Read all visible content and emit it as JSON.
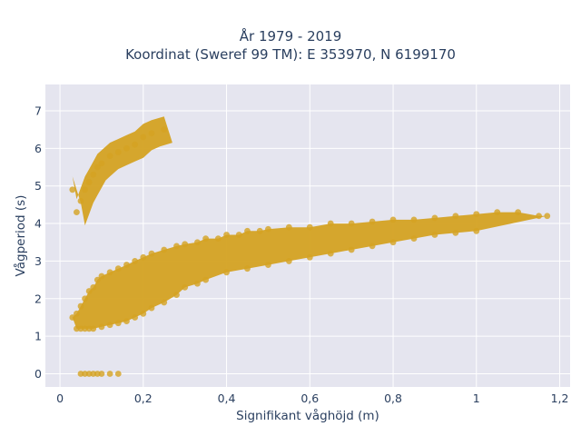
{
  "chart_data": {
    "type": "scatter",
    "title": "År 1979 - 2019",
    "subtitle": "Koordinat (Sweref 99 TM): E 353970, N 6199170",
    "xlabel": "Signifikant våghöjd (m)",
    "ylabel": "Vågperiod (s)",
    "xlim": [
      -0.035,
      1.225
    ],
    "ylim": [
      -0.35,
      7.7
    ],
    "xticks": [
      0,
      0.2,
      0.4,
      0.6,
      0.8,
      1,
      1.2
    ],
    "xtick_labels": [
      "0",
      "0,2",
      "0,4",
      "0,6",
      "0,8",
      "1",
      "1,2"
    ],
    "yticks": [
      0,
      1,
      2,
      3,
      4,
      5,
      6,
      7
    ],
    "ytick_labels": [
      "0",
      "1",
      "2",
      "3",
      "4",
      "5",
      "6",
      "7"
    ],
    "grid": true,
    "marker_color": "#d4a222",
    "plot_background": "#e5e5ef",
    "series": [
      {
        "x": [
          0.03,
          0.04,
          0.05,
          0.06,
          0.07,
          0.08,
          0.09,
          0.1,
          0.12,
          0.14,
          0.16,
          0.18,
          0.2,
          0.22,
          0.25,
          0.28,
          0.3,
          0.33,
          0.35,
          0.38,
          0.4,
          0.43,
          0.45,
          0.48,
          0.5,
          0.55,
          0.6,
          0.65,
          0.7,
          0.75,
          0.8,
          0.85,
          0.9,
          0.95,
          1.0,
          1.05,
          1.1,
          1.15,
          1.17
        ],
        "y": [
          1.5,
          1.6,
          1.8,
          2.0,
          2.2,
          2.3,
          2.5,
          2.6,
          2.7,
          2.8,
          2.9,
          3.0,
          3.1,
          3.2,
          3.3,
          3.4,
          3.45,
          3.5,
          3.6,
          3.6,
          3.7,
          3.7,
          3.8,
          3.8,
          3.85,
          3.9,
          3.9,
          4.0,
          4.0,
          4.05,
          4.1,
          4.1,
          4.15,
          4.2,
          4.25,
          4.3,
          4.3,
          4.2,
          4.2
        ]
      },
      {
        "x": [
          0.04,
          0.05,
          0.06,
          0.07,
          0.08,
          0.1,
          0.12,
          0.14,
          0.16,
          0.18,
          0.2,
          0.22,
          0.25,
          0.28,
          0.3,
          0.33,
          0.35,
          0.4,
          0.45,
          0.5,
          0.55,
          0.6,
          0.65,
          0.7,
          0.75,
          0.8,
          0.85,
          0.9,
          0.95,
          1.0
        ],
        "y": [
          1.2,
          1.2,
          1.2,
          1.2,
          1.2,
          1.25,
          1.3,
          1.35,
          1.4,
          1.5,
          1.6,
          1.75,
          1.9,
          2.1,
          2.3,
          2.4,
          2.5,
          2.7,
          2.8,
          2.9,
          3.0,
          3.1,
          3.2,
          3.3,
          3.4,
          3.5,
          3.6,
          3.7,
          3.75,
          3.8
        ]
      },
      {
        "x": [
          0.03,
          0.04,
          0.05,
          0.06,
          0.07,
          0.08,
          0.09,
          0.1,
          0.12,
          0.14,
          0.16,
          0.18,
          0.2,
          0.22,
          0.25
        ],
        "y": [
          4.9,
          4.3,
          4.6,
          4.9,
          5.1,
          5.3,
          5.5,
          5.6,
          5.8,
          5.9,
          6.0,
          6.1,
          6.3,
          6.4,
          6.5
        ]
      },
      {
        "x": [
          0.05,
          0.06,
          0.07,
          0.08,
          0.09,
          0.1,
          0.12,
          0.14
        ],
        "y": [
          0,
          0,
          0,
          0,
          0,
          0,
          0,
          0
        ]
      }
    ]
  }
}
